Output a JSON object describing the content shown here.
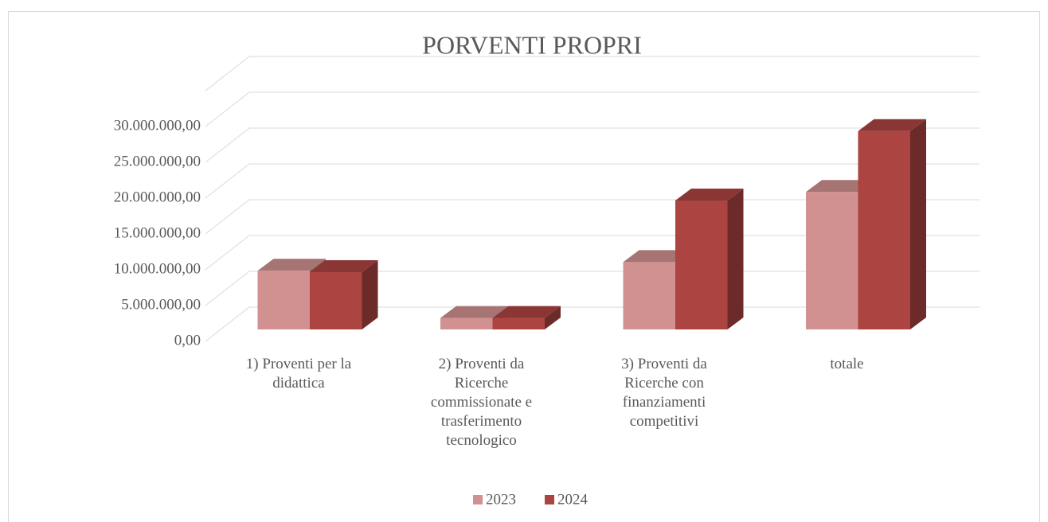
{
  "chart_data": {
    "type": "bar3d",
    "title": "PORVENTI PROPRI",
    "categories": [
      "1) Proventi per la didattica",
      "2) Proventi da Ricerche commissionate e trasferimento tecnologico",
      "3) Proventi da Ricerche con finanziamenti competitivi",
      "totale"
    ],
    "series": [
      {
        "name": "2023",
        "color": "#d09190",
        "values": [
          8200000,
          1600000,
          9400000,
          19200000
        ]
      },
      {
        "name": "2024",
        "color": "#ac4441",
        "values": [
          8000000,
          1600000,
          18000000,
          27700000
        ]
      }
    ],
    "ylim": [
      0,
      35000000
    ],
    "yticks": [
      {
        "value": 0,
        "label": "0,00"
      },
      {
        "value": 5000000,
        "label": "5.000.000,00"
      },
      {
        "value": 10000000,
        "label": "10.000.000,00"
      },
      {
        "value": 15000000,
        "label": "15.000.000,00"
      },
      {
        "value": 20000000,
        "label": "20.000.000,00"
      },
      {
        "value": 25000000,
        "label": "25.000.000,00"
      },
      {
        "value": 30000000,
        "label": "30.000.000,00"
      }
    ],
    "grid": true,
    "legend": "bottom"
  }
}
